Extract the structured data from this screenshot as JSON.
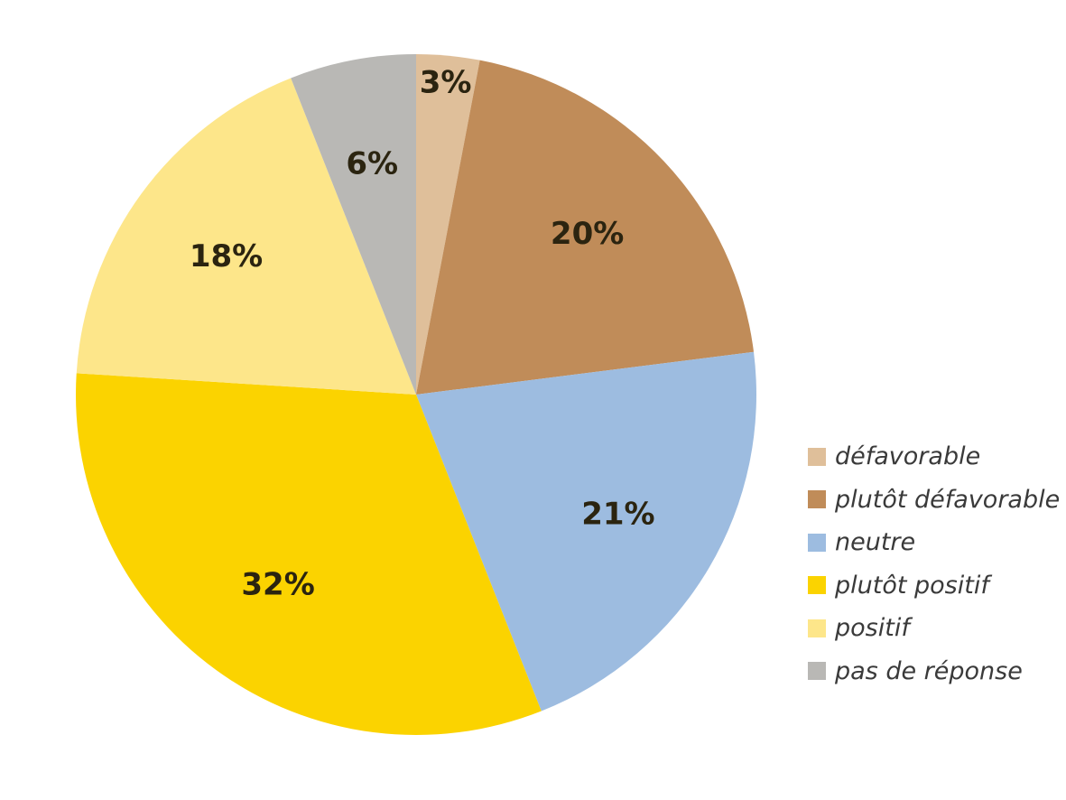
{
  "chart_data": {
    "type": "pie",
    "categories": [
      "défavorable",
      "plutôt défavorable",
      "neutre",
      "plutôt positif",
      "positif",
      "pas de réponse"
    ],
    "values": [
      3,
      20,
      21,
      32,
      18,
      6
    ],
    "value_labels": [
      "3%",
      "20%",
      "21%",
      "32%",
      "18%",
      "6%"
    ],
    "colors": [
      "#dfbf9a",
      "#c08c59",
      "#9dbce0",
      "#fbd300",
      "#fde68a",
      "#b9b8b5"
    ],
    "start_angle_deg": 0,
    "direction": "clockwise",
    "legend_position": "right",
    "title": ""
  }
}
